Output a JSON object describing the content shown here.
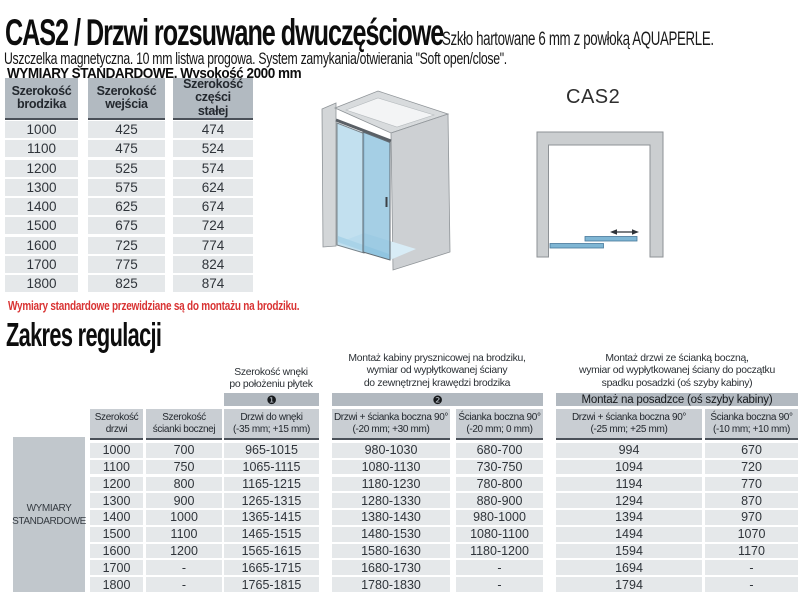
{
  "header": {
    "title": "CAS2 / Drzwi rozsuwane dwuczęściowe",
    "title_note": "Szkło hartowane 6 mm z powłoką AQUAPERLE.",
    "subtitle": "Uszczelka magnetyczna. 10 mm listwa progowa. System zamykania/otwierania \"Soft open/close\".",
    "dimensions_heading": "WYMIARY STANDARDOWE. Wysokość 2000 mm"
  },
  "note_red": "Wymiary standardowe przewidziane są do montażu na brodziku.",
  "section2_title": "Zakres regulacji",
  "diagram": {
    "label": "CAS2"
  },
  "standard_table": {
    "headers": [
      "Szerokość\nbrodzika",
      "Szerokość\nwejścia",
      "Szerokość\nczęści\nstałej"
    ],
    "rows": [
      [
        "1000",
        "425",
        "474"
      ],
      [
        "1100",
        "475",
        "524"
      ],
      [
        "1200",
        "525",
        "574"
      ],
      [
        "1300",
        "575",
        "624"
      ],
      [
        "1400",
        "625",
        "674"
      ],
      [
        "1500",
        "675",
        "724"
      ],
      [
        "1600",
        "725",
        "774"
      ],
      [
        "1700",
        "775",
        "824"
      ],
      [
        "1800",
        "825",
        "874"
      ]
    ]
  },
  "regulation_table": {
    "row_label": "WYMIARY\nSTANDARDOWE",
    "group_notes": [
      "Szerokość wnęki\npo położeniu płytek",
      "Montaż kabiny prysznicowej na brodziku,\nwymiar od wypłytkowanej ściany\ndo zewnętrznej krawędzi brodzika",
      "Montaż drzwi ze ścianką boczną,\nwymiar od wypłytkowanej ściany do początku\nspadku posadzki (oś szyby kabiny)"
    ],
    "group_bars": [
      "❶",
      "❷",
      "Montaż na posadzce (oś szyby kabiny)"
    ],
    "columns": [
      "Szerokość\ndrzwi",
      "Szerokość\nścianki bocznej",
      "Drzwi do wnęki\n(-35 mm; +15 mm)",
      "Drzwi + ścianka boczna 90°\n(-20 mm; +30 mm)",
      "Ścianka boczna 90°\n(-20 mm; 0 mm)",
      "Drzwi + ścianka boczna 90°\n(-25 mm; +25 mm)",
      "Ścianka boczna 90°\n(-10 mm; +10 mm)"
    ],
    "rows": [
      [
        "1000",
        "700",
        "965-1015",
        "980-1030",
        "680-700",
        "994",
        "670"
      ],
      [
        "1100",
        "750",
        "1065-1115",
        "1080-1130",
        "730-750",
        "1094",
        "720"
      ],
      [
        "1200",
        "800",
        "1165-1215",
        "1180-1230",
        "780-800",
        "1194",
        "770"
      ],
      [
        "1300",
        "900",
        "1265-1315",
        "1280-1330",
        "880-900",
        "1294",
        "870"
      ],
      [
        "1400",
        "1000",
        "1365-1415",
        "1380-1430",
        "980-1000",
        "1394",
        "970"
      ],
      [
        "1500",
        "1100",
        "1465-1515",
        "1480-1530",
        "1080-1100",
        "1494",
        "1070"
      ],
      [
        "1600",
        "1200",
        "1565-1615",
        "1580-1630",
        "1180-1200",
        "1594",
        "1170"
      ],
      [
        "1700",
        "-",
        "1665-1715",
        "1680-1730",
        "-",
        "1694",
        "-"
      ],
      [
        "1800",
        "-",
        "1765-1815",
        "1780-1830",
        "-",
        "1794",
        "-"
      ]
    ]
  },
  "colors": {
    "accent_red": "#d93333",
    "glass_blue": "#7fb6d4",
    "wall_gray": "#cbced0",
    "table_header_gray": "#b2bac1",
    "cell_gray": "#e5e8ea",
    "dark_border": "#4a5058"
  }
}
